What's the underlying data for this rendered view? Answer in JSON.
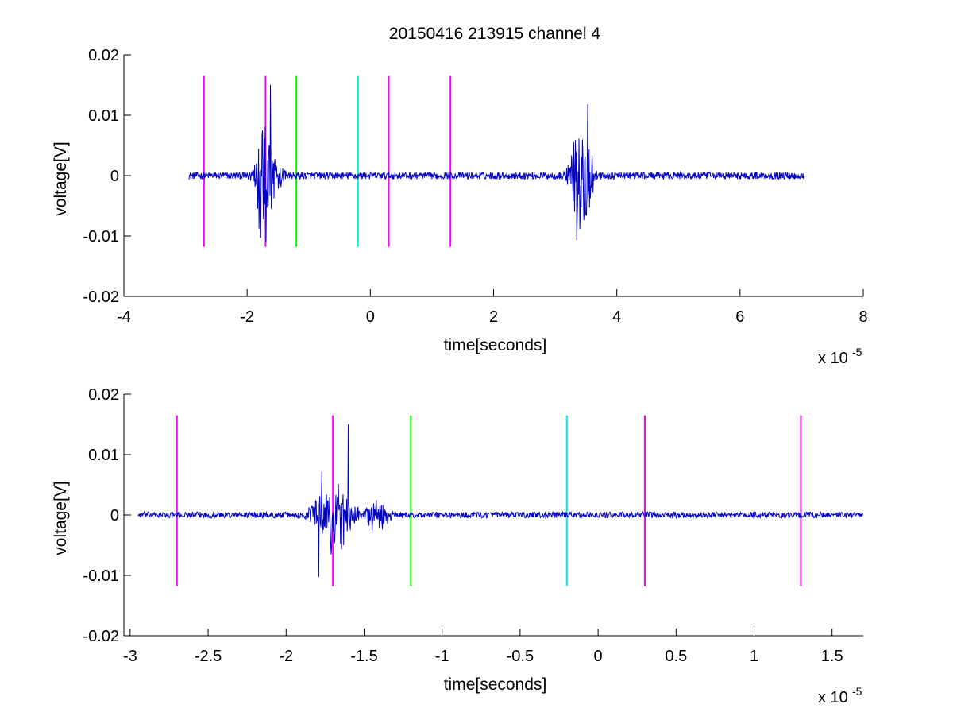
{
  "figure": {
    "title": "20150416 213915 channel 4"
  },
  "chart_data": [
    {
      "type": "line",
      "title": "20150416 213915 channel 4",
      "xlabel": "time[seconds]",
      "ylabel": "voltage[V]",
      "x_multiplier": "x 10",
      "x_exponent": "-5",
      "xlim": [
        -4,
        8
      ],
      "ylim": [
        -0.02,
        0.02
      ],
      "xticks": [
        -4,
        -2,
        0,
        2,
        4,
        6,
        8
      ],
      "xtick_labels": [
        "-4",
        "-2",
        "0",
        "2",
        "4",
        "6",
        "8"
      ],
      "yticks": [
        -0.02,
        -0.01,
        0,
        0.01,
        0.02
      ],
      "ytick_labels": [
        "-0.02",
        "-0.01",
        "0",
        "0.01",
        "0.02"
      ],
      "grid": false,
      "signal": {
        "color": "#0000cc",
        "x_range": [
          -2.95,
          7.05
        ],
        "baseline": 0.0,
        "noise": 0.0006,
        "bursts": [
          {
            "center": -1.72,
            "width": 0.18,
            "amplitude": 0.012
          },
          {
            "center": -1.45,
            "width": 0.1,
            "amplitude": 0.0025
          },
          {
            "center": 3.42,
            "width": 0.2,
            "amplitude": 0.011
          }
        ],
        "peaks": [
          {
            "x": -1.78,
            "y": -0.0103
          },
          {
            "x": -1.75,
            "y": 0.0075
          },
          {
            "x": -1.62,
            "y": 0.015
          },
          {
            "x": -1.66,
            "y": -0.005
          },
          {
            "x": 3.35,
            "y": -0.0107
          },
          {
            "x": 3.53,
            "y": 0.0118
          },
          {
            "x": 3.44,
            "y": 0.006
          }
        ]
      },
      "markers": [
        {
          "x": -2.7,
          "color": "#ff00ff",
          "y_range": [
            -0.0118,
            0.0165
          ]
        },
        {
          "x": -1.7,
          "color": "#ff00ff",
          "y_range": [
            -0.0118,
            0.0165
          ]
        },
        {
          "x": -1.2,
          "color": "#00ee00",
          "y_range": [
            -0.0118,
            0.0165
          ]
        },
        {
          "x": -0.2,
          "color": "#00eeee",
          "y_range": [
            -0.0118,
            0.0165
          ]
        },
        {
          "x": 0.3,
          "color": "#ff00ff",
          "y_range": [
            -0.0118,
            0.0165
          ]
        },
        {
          "x": 1.3,
          "color": "#ff00ff",
          "y_range": [
            -0.0118,
            0.0165
          ]
        }
      ]
    },
    {
      "type": "line",
      "title": "",
      "xlabel": "time[seconds]",
      "ylabel": "voltage[V]",
      "x_multiplier": "x 10",
      "x_exponent": "-5",
      "xlim": [
        -3.04,
        1.7
      ],
      "ylim": [
        -0.02,
        0.02
      ],
      "xticks": [
        -3,
        -2.5,
        -2,
        -1.5,
        -1,
        -0.5,
        0,
        0.5,
        1,
        1.5
      ],
      "xtick_labels": [
        "-3",
        "-2.5",
        "-2",
        "-1.5",
        "-1",
        "-0.5",
        "0",
        "0.5",
        "1",
        "1.5"
      ],
      "yticks": [
        -0.02,
        -0.01,
        0,
        0.01,
        0.02
      ],
      "ytick_labels": [
        "-0.02",
        "-0.01",
        "0",
        "0.01",
        "0.02"
      ],
      "grid": false,
      "signal": {
        "color": "#0000cc",
        "x_range": [
          -2.95,
          1.7
        ],
        "baseline": 0.0,
        "noise": 0.0005,
        "bursts": [
          {
            "center": -1.7,
            "width": 0.14,
            "amplitude": 0.008
          },
          {
            "center": -1.42,
            "width": 0.1,
            "amplitude": 0.0025
          }
        ],
        "peaks": [
          {
            "x": -1.79,
            "y": -0.0103
          },
          {
            "x": -1.77,
            "y": 0.0073
          },
          {
            "x": -1.6,
            "y": 0.015
          },
          {
            "x": -1.63,
            "y": -0.005
          },
          {
            "x": -1.72,
            "y": 0.003
          },
          {
            "x": -1.45,
            "y": -0.003
          },
          {
            "x": -1.4,
            "y": 0.0015
          }
        ]
      },
      "markers": [
        {
          "x": -2.7,
          "color": "#ff00ff",
          "y_range": [
            -0.0118,
            0.0165
          ]
        },
        {
          "x": -1.7,
          "color": "#ff00ff",
          "y_range": [
            -0.0118,
            0.0165
          ]
        },
        {
          "x": -1.2,
          "color": "#00ee00",
          "y_range": [
            -0.0118,
            0.0165
          ]
        },
        {
          "x": -0.2,
          "color": "#00eeee",
          "y_range": [
            -0.0118,
            0.0165
          ]
        },
        {
          "x": 0.3,
          "color": "#ff00ff",
          "y_range": [
            -0.0118,
            0.0165
          ]
        },
        {
          "x": 1.3,
          "color": "#ff00ff",
          "y_range": [
            -0.0118,
            0.0165
          ]
        }
      ]
    }
  ]
}
